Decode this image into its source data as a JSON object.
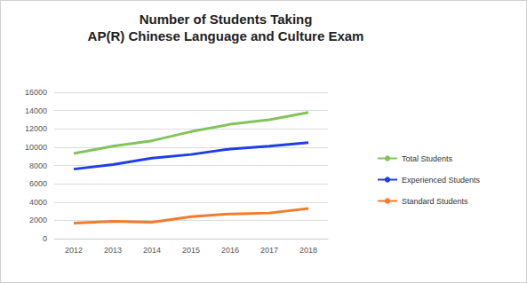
{
  "chart_data": {
    "type": "line",
    "title": "Number of Students Taking\nAP(R) Chinese Language and Culture Exam",
    "categories": [
      "2012",
      "2013",
      "2014",
      "2015",
      "2016",
      "2017",
      "2018"
    ],
    "series": [
      {
        "name": "Total Students",
        "color": "#82c45a",
        "values": [
          9300,
          10100,
          10700,
          11700,
          12500,
          13000,
          13800
        ]
      },
      {
        "name": "Experienced Students",
        "color": "#1f3ee6",
        "values": [
          7600,
          8100,
          8800,
          9200,
          9800,
          10100,
          10500
        ]
      },
      {
        "name": "Standard Students",
        "color": "#f37b2d",
        "values": [
          1700,
          1900,
          1800,
          2400,
          2700,
          2800,
          3300
        ]
      }
    ],
    "ylim": [
      0,
      16000
    ],
    "yticks": [
      0,
      2000,
      4000,
      6000,
      8000,
      10000,
      12000,
      14000,
      16000
    ],
    "grid": true,
    "legend": "right",
    "marker": "none"
  }
}
